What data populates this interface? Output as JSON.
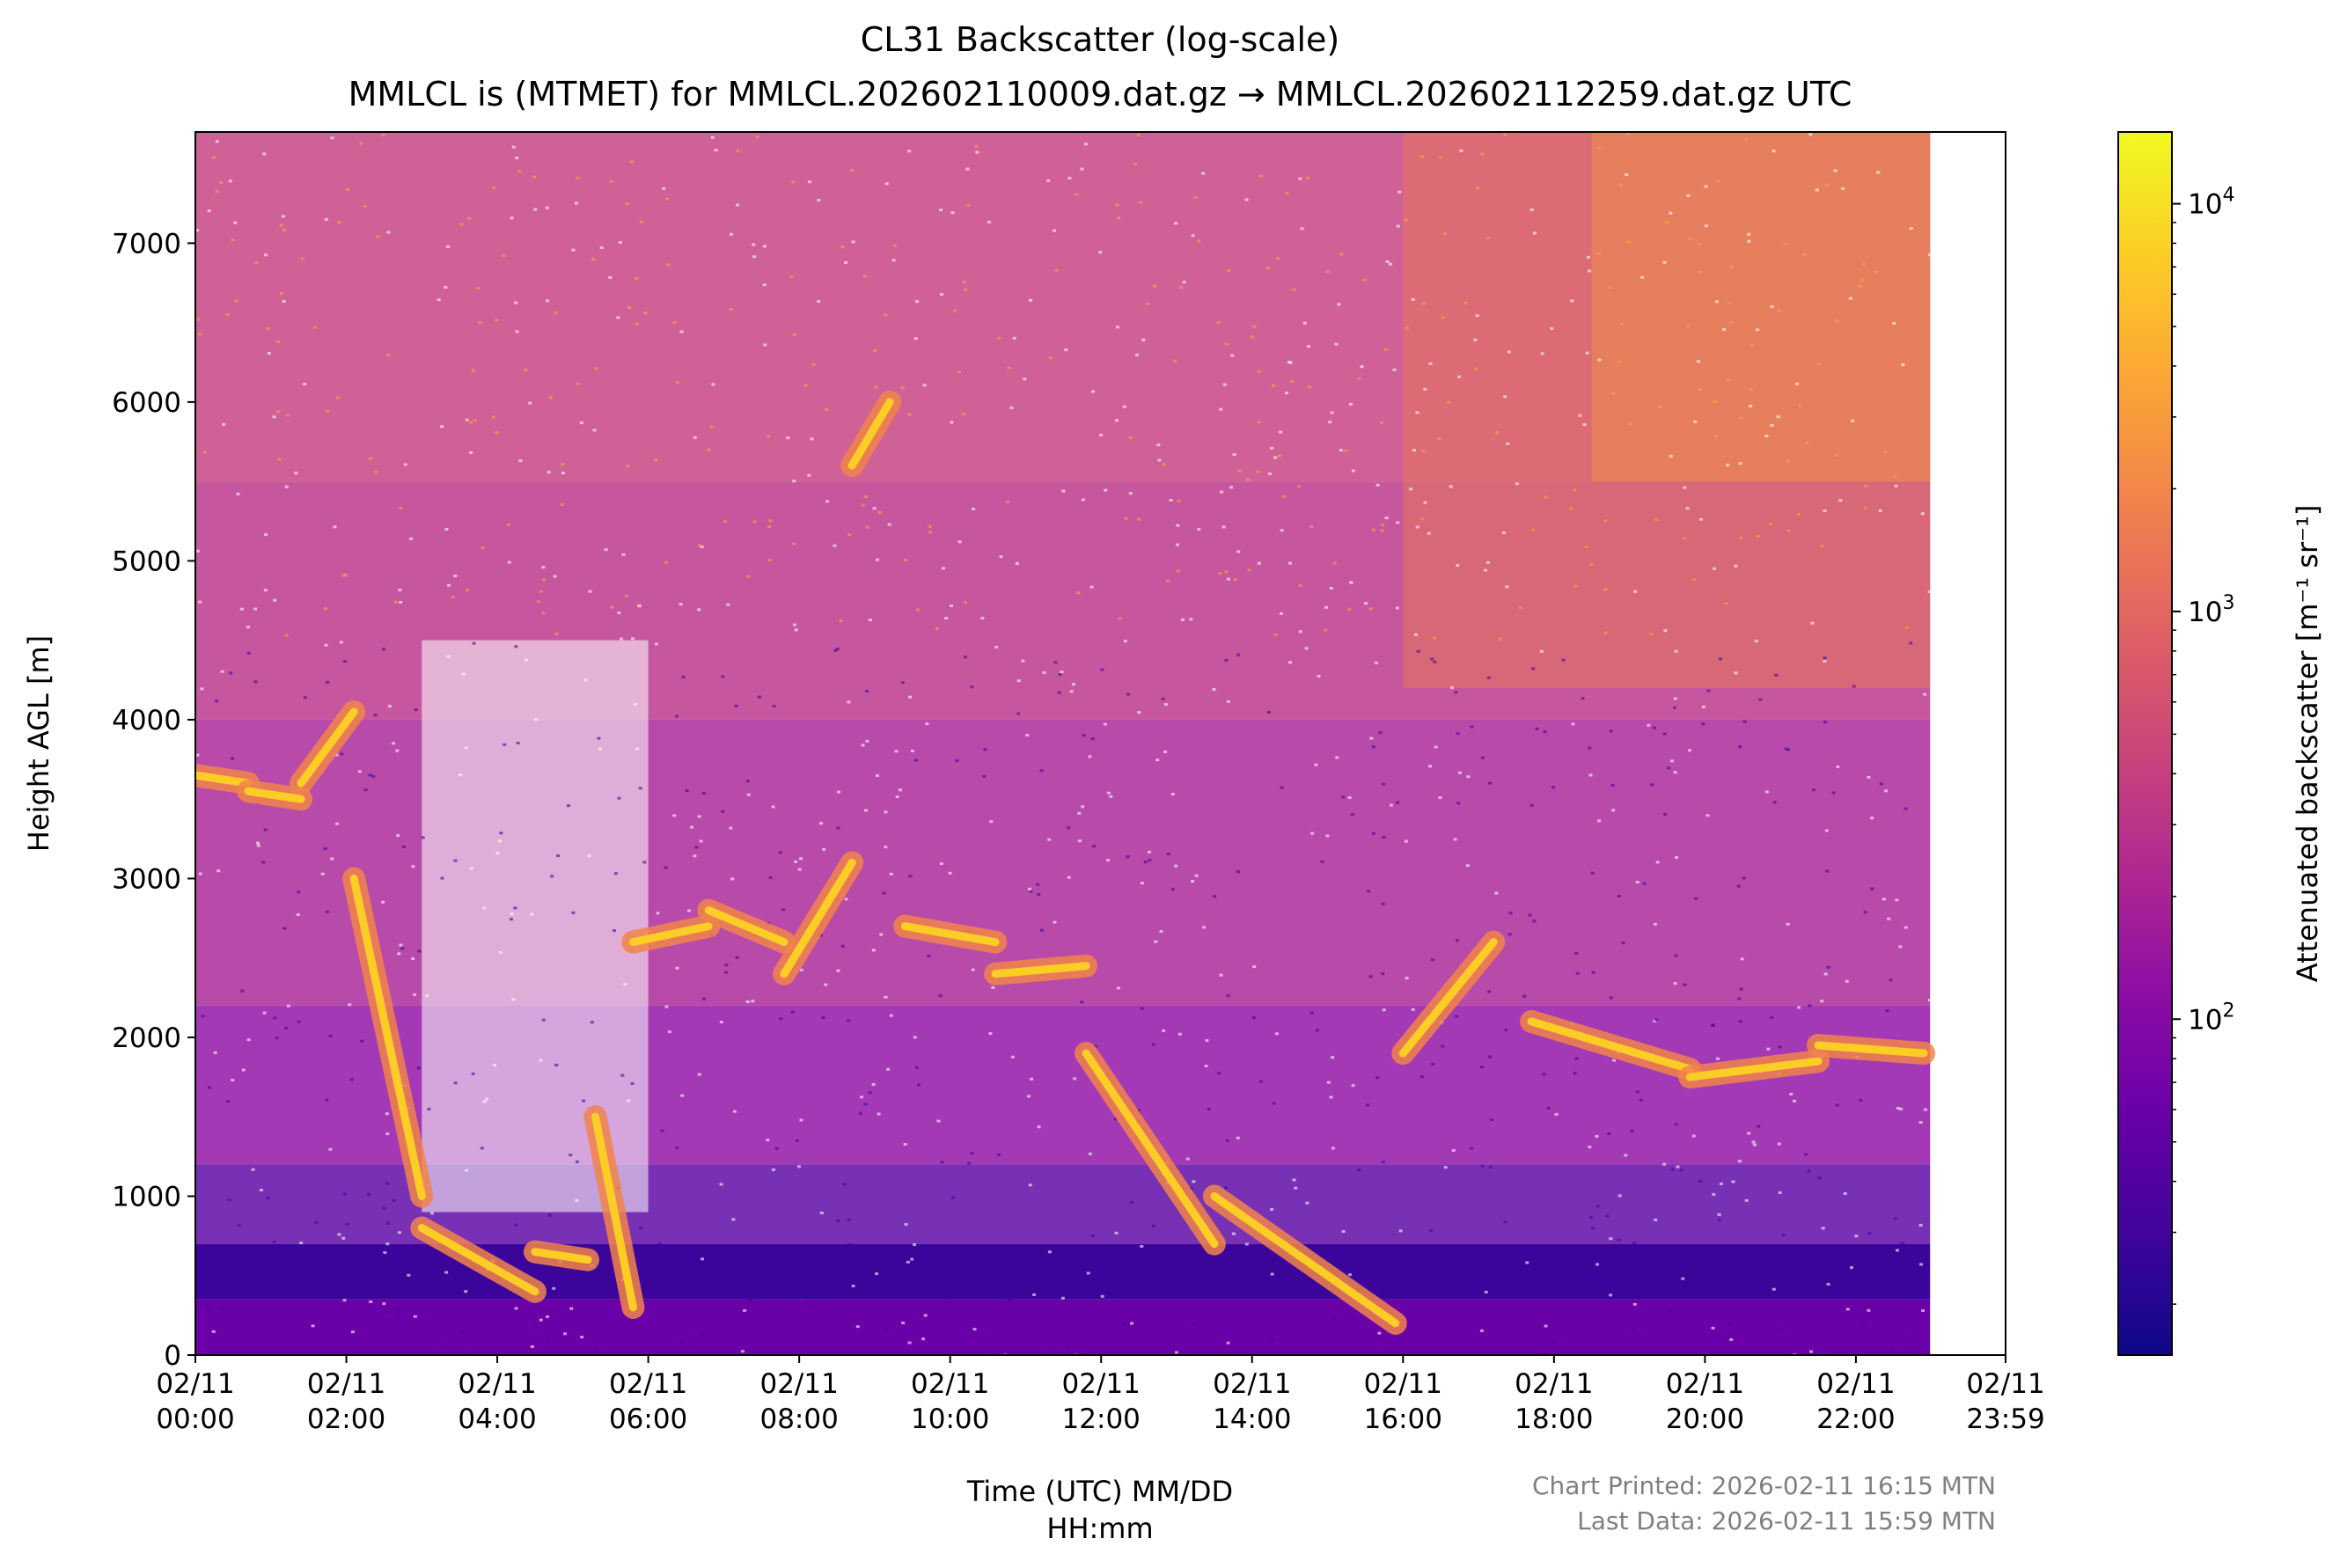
{
  "chart_data": {
    "type": "heatmap",
    "title": "CL31 Backscatter (log-scale)",
    "subtitle": "MMLCL is (MTMET) for MMLCL.202602110009.dat.gz → MMLCL.202602112259.dat.gz UTC",
    "xlabel": [
      "Time (UTC) MM/DD",
      "HH:mm"
    ],
    "ylabel": "Height AGL [m]",
    "colorbar_label": "Attenuated backscatter [m⁻¹ sr⁻¹]",
    "colorbar_scale": "log",
    "colorbar_range": [
      15,
      15000
    ],
    "colorbar_ticks": [
      {
        "base": "10",
        "exp": "2",
        "value": 100
      },
      {
        "base": "10",
        "exp": "3",
        "value": 1000
      },
      {
        "base": "10",
        "exp": "4",
        "value": 10000
      }
    ],
    "colormap": [
      "#0d0887",
      "#41049d",
      "#6a00a8",
      "#8f0da4",
      "#b12a90",
      "#cc4778",
      "#e16462",
      "#f2844b",
      "#fca636",
      "#fcce25",
      "#f0f921"
    ],
    "xlim_hours": [
      0,
      23.983
    ],
    "data_end_hours": 22.983,
    "ylim": [
      0,
      7700
    ],
    "x_ticks": [
      {
        "hours": 0,
        "date": "02/11",
        "time": "00:00"
      },
      {
        "hours": 2,
        "date": "02/11",
        "time": "02:00"
      },
      {
        "hours": 4,
        "date": "02/11",
        "time": "04:00"
      },
      {
        "hours": 6,
        "date": "02/11",
        "time": "06:00"
      },
      {
        "hours": 8,
        "date": "02/11",
        "time": "08:00"
      },
      {
        "hours": 10,
        "date": "02/11",
        "time": "10:00"
      },
      {
        "hours": 12,
        "date": "02/11",
        "time": "12:00"
      },
      {
        "hours": 14,
        "date": "02/11",
        "time": "14:00"
      },
      {
        "hours": 16,
        "date": "02/11",
        "time": "16:00"
      },
      {
        "hours": 18,
        "date": "02/11",
        "time": "18:00"
      },
      {
        "hours": 20,
        "date": "02/11",
        "time": "20:00"
      },
      {
        "hours": 22,
        "date": "02/11",
        "time": "22:00"
      },
      {
        "hours": 23.983,
        "date": "02/11",
        "time": "23:59"
      }
    ],
    "y_ticks": [
      0,
      1000,
      2000,
      3000,
      4000,
      5000,
      6000,
      7000
    ],
    "cloud_layers": [
      {
        "hours": [
          0.0,
          0.7
        ],
        "height_m": [
          3650,
          3600
        ]
      },
      {
        "hours": [
          0.7,
          1.4
        ],
        "height_m": [
          3550,
          3500
        ]
      },
      {
        "hours": [
          1.4,
          2.1
        ],
        "height_m": [
          3600,
          4050
        ]
      },
      {
        "hours": [
          2.1,
          3.0
        ],
        "height_m": [
          3000,
          1000
        ]
      },
      {
        "hours": [
          3.0,
          4.5
        ],
        "height_m": [
          800,
          400
        ]
      },
      {
        "hours": [
          4.5,
          5.2
        ],
        "height_m": [
          650,
          600
        ]
      },
      {
        "hours": [
          5.3,
          5.8
        ],
        "height_m": [
          1500,
          300
        ]
      },
      {
        "hours": [
          5.8,
          6.8
        ],
        "height_m": [
          2600,
          2700
        ]
      },
      {
        "hours": [
          6.8,
          7.8
        ],
        "height_m": [
          2800,
          2600
        ]
      },
      {
        "hours": [
          7.8,
          8.7
        ],
        "height_m": [
          2400,
          3100
        ]
      },
      {
        "hours": [
          8.7,
          9.2
        ],
        "height_m": [
          5600,
          6000
        ]
      },
      {
        "hours": [
          9.4,
          10.6
        ],
        "height_m": [
          2700,
          2600
        ]
      },
      {
        "hours": [
          10.6,
          11.8
        ],
        "height_m": [
          2400,
          2450
        ]
      },
      {
        "hours": [
          11.8,
          13.5
        ],
        "height_m": [
          1900,
          700
        ]
      },
      {
        "hours": [
          13.5,
          15.9
        ],
        "height_m": [
          1000,
          200
        ]
      },
      {
        "hours": [
          16.0,
          17.2
        ],
        "height_m": [
          1900,
          2600
        ]
      },
      {
        "hours": [
          17.7,
          19.8
        ],
        "height_m": [
          2100,
          1800
        ]
      },
      {
        "hours": [
          19.8,
          21.5
        ],
        "height_m": [
          1750,
          1850
        ]
      },
      {
        "hours": [
          21.5,
          22.9
        ],
        "height_m": [
          1950,
          1900
        ]
      }
    ]
  },
  "footer": {
    "printed": "Chart Printed: 2026-02-11 16:15 MTN",
    "last_data": "Last Data: 2026-02-11 15:59 MTN"
  }
}
